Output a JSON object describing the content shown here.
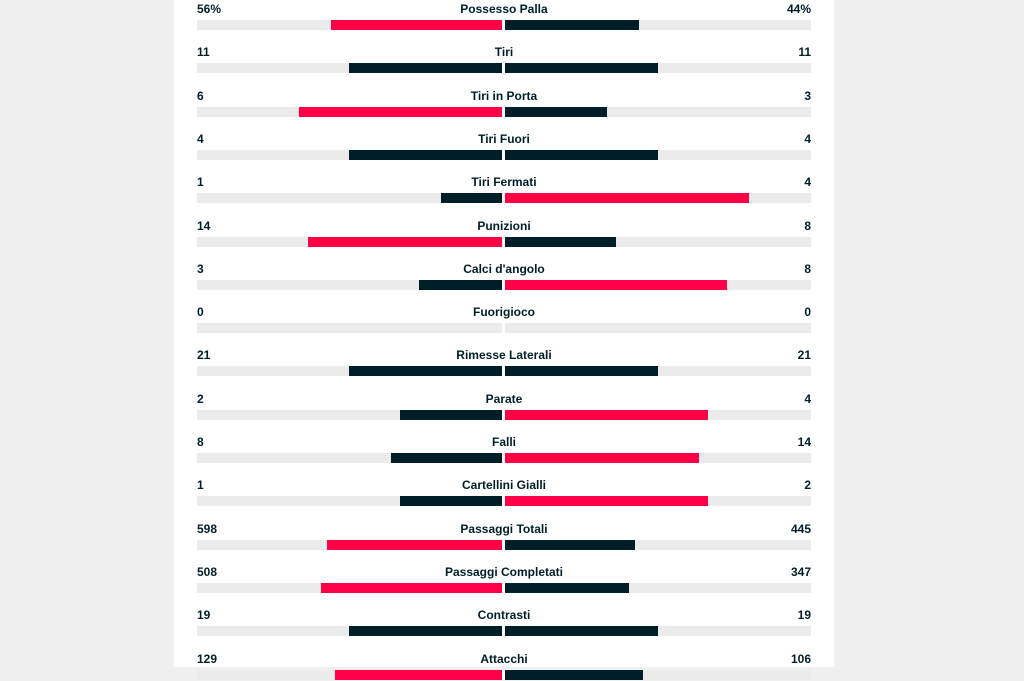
{
  "colors": {
    "leader": "#ff0046",
    "trailer": "#001e28",
    "track": "#ebebeb"
  },
  "stats": [
    {
      "label": "Possesso Palla",
      "home": "56%",
      "away": "44%",
      "home_pct": 0.56,
      "away_pct": 0.44
    },
    {
      "label": "Tiri",
      "home": "11",
      "away": "11",
      "home_pct": 0.5,
      "away_pct": 0.5
    },
    {
      "label": "Tiri in Porta",
      "home": "6",
      "away": "3",
      "home_pct": 0.667,
      "away_pct": 0.333
    },
    {
      "label": "Tiri Fuori",
      "home": "4",
      "away": "4",
      "home_pct": 0.5,
      "away_pct": 0.5
    },
    {
      "label": "Tiri Fermati",
      "home": "1",
      "away": "4",
      "home_pct": 0.2,
      "away_pct": 0.8
    },
    {
      "label": "Punizioni",
      "home": "14",
      "away": "8",
      "home_pct": 0.636,
      "away_pct": 0.364
    },
    {
      "label": "Calci d'angolo",
      "home": "3",
      "away": "8",
      "home_pct": 0.273,
      "away_pct": 0.727
    },
    {
      "label": "Fuorigioco",
      "home": "0",
      "away": "0",
      "home_pct": 0,
      "away_pct": 0
    },
    {
      "label": "Rimesse Laterali",
      "home": "21",
      "away": "21",
      "home_pct": 0.5,
      "away_pct": 0.5
    },
    {
      "label": "Parate",
      "home": "2",
      "away": "4",
      "home_pct": 0.333,
      "away_pct": 0.667
    },
    {
      "label": "Falli",
      "home": "8",
      "away": "14",
      "home_pct": 0.364,
      "away_pct": 0.636
    },
    {
      "label": "Cartellini Gialli",
      "home": "1",
      "away": "2",
      "home_pct": 0.333,
      "away_pct": 0.667
    },
    {
      "label": "Passaggi Totali",
      "home": "598",
      "away": "445",
      "home_pct": 0.573,
      "away_pct": 0.427
    },
    {
      "label": "Passaggi Completati",
      "home": "508",
      "away": "347",
      "home_pct": 0.594,
      "away_pct": 0.406
    },
    {
      "label": "Contrasti",
      "home": "19",
      "away": "19",
      "home_pct": 0.5,
      "away_pct": 0.5
    },
    {
      "label": "Attacchi",
      "home": "129",
      "away": "106",
      "home_pct": 0.549,
      "away_pct": 0.451
    }
  ]
}
